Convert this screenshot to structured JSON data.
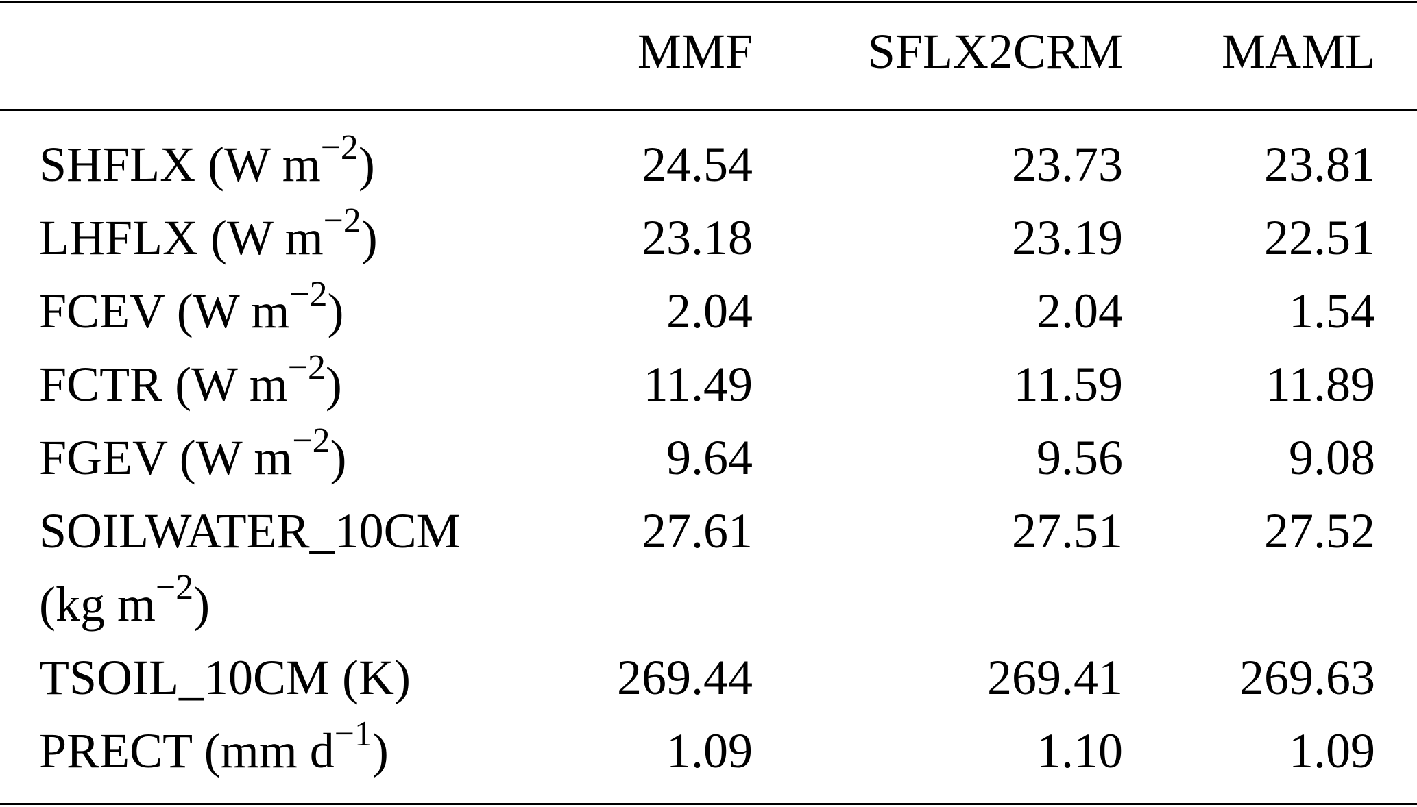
{
  "table": {
    "header": [
      "MMF",
      "SFLX2CRM",
      "MAML"
    ],
    "rows": [
      {
        "label": {
          "text": "SHFLX (W m",
          "sup": "−2",
          "close": ")"
        },
        "cells": [
          "24.54",
          "23.73",
          "23.81"
        ]
      },
      {
        "label": {
          "text": "LHFLX (W m",
          "sup": "−2",
          "close": ")"
        },
        "cells": [
          "23.18",
          "23.19",
          "22.51"
        ]
      },
      {
        "label": {
          "text": "FCEV (W m",
          "sup": "−2",
          "close": ")"
        },
        "cells": [
          "2.04",
          "2.04",
          "1.54"
        ]
      },
      {
        "label": {
          "text": "FCTR (W m",
          "sup": "−2",
          "close": ")"
        },
        "cells": [
          "11.49",
          "11.59",
          "11.89"
        ]
      },
      {
        "label": {
          "text": "FGEV (W m",
          "sup": "−2",
          "close": ")"
        },
        "cells": [
          "9.64",
          "9.56",
          "9.08"
        ]
      },
      {
        "label": {
          "text": "SOILWATER_10CM (kg m",
          "sup": "−2",
          "close": ")"
        },
        "cells": [
          "27.61",
          "27.51",
          "27.52"
        ]
      },
      {
        "label": {
          "text": "TSOIL_10CM (K)"
        },
        "cells": [
          "269.44",
          "269.41",
          "269.63"
        ]
      },
      {
        "label": {
          "text": "PRECT (mm d",
          "sup": "−1",
          "close": ")"
        },
        "cells": [
          "1.09",
          "1.10",
          "1.09"
        ]
      }
    ]
  }
}
